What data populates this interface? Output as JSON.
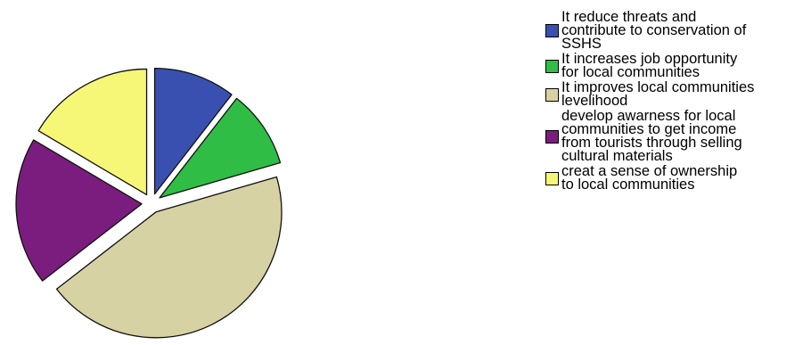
{
  "chart_data": {
    "type": "pie",
    "exploded": true,
    "legend_position": "right",
    "slices": [
      {
        "label": "It reduce threats and\ncontribute to conservation of\nSSHS",
        "value": 10.5,
        "color": "#3a50b0"
      },
      {
        "label": "It increases job opportunity\nfor local communities",
        "value": 10.0,
        "color": "#2fbd46"
      },
      {
        "label": "It improves local communities\nlevelihood",
        "value": 44.0,
        "color": "#d6d2a4"
      },
      {
        "label": "develop awarness for local\ncommunities to get income\nfrom tourists through selling\ncultural materials",
        "value": 19.0,
        "color": "#7a1d7e"
      },
      {
        "label": "creat a sense of ownership\nto local communities",
        "value": 16.5,
        "color": "#f7f777"
      }
    ]
  }
}
